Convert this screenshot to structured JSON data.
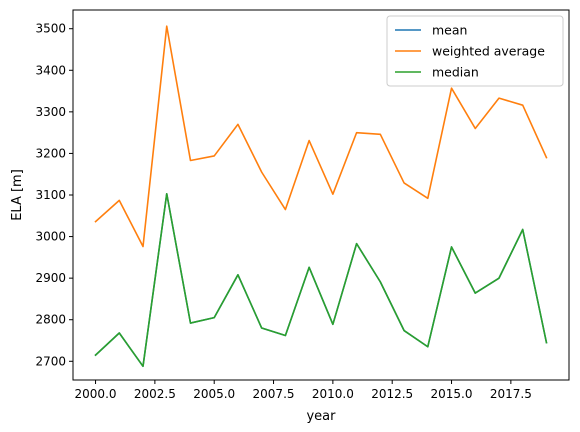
{
  "chart_data": {
    "type": "line",
    "title": "",
    "xlabel": "year",
    "ylabel": "ELA [m]",
    "xlim": [
      1999.05,
      2019.95
    ],
    "ylim": [
      2655,
      3545
    ],
    "x_ticks": [
      2000.0,
      2002.5,
      2005.0,
      2007.5,
      2010.0,
      2012.5,
      2015.0,
      2017.5
    ],
    "x_tick_labels": [
      "2000.0",
      "2002.5",
      "2005.0",
      "2007.5",
      "2010.0",
      "2012.5",
      "2015.0",
      "2017.5"
    ],
    "y_ticks": [
      2700,
      2800,
      2900,
      3000,
      3100,
      3200,
      3300,
      3400,
      3500
    ],
    "y_tick_labels": [
      "2700",
      "2800",
      "2900",
      "3000",
      "3100",
      "3200",
      "3300",
      "3400",
      "3500"
    ],
    "grid": false,
    "legend": "top-right",
    "x": [
      2000,
      2001,
      2002,
      2003,
      2004,
      2005,
      2006,
      2007,
      2008,
      2009,
      2010,
      2011,
      2012,
      2013,
      2014,
      2015,
      2016,
      2017,
      2018,
      2019
    ],
    "series": [
      {
        "name": "mean",
        "color": "#1f77b4",
        "values": [
          2715,
          2768,
          2688,
          3103,
          2792,
          2805,
          2908,
          2780,
          2762,
          2926,
          2789,
          2983,
          2891,
          2774,
          2735,
          2975,
          2864,
          2900,
          3017,
          2745
        ]
      },
      {
        "name": "weighted average",
        "color": "#ff7f0e",
        "values": [
          3036,
          3087,
          2976,
          3506,
          3183,
          3194,
          3270,
          3155,
          3065,
          3231,
          3102,
          3250,
          3246,
          3129,
          3092,
          3357,
          3260,
          3333,
          3316,
          3190
        ]
      },
      {
        "name": "median",
        "color": "#2ca02c",
        "values": [
          2715,
          2768,
          2688,
          3103,
          2792,
          2805,
          2908,
          2780,
          2762,
          2926,
          2789,
          2983,
          2891,
          2774,
          2735,
          2975,
          2864,
          2900,
          3017,
          2745
        ]
      }
    ]
  }
}
